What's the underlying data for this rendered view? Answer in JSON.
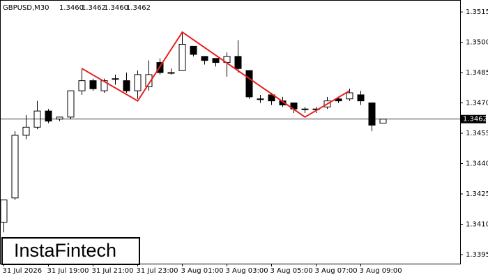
{
  "chart_data": {
    "type": "candlestick",
    "symbol": "GBPUSD,M30",
    "header_values": [
      1.346,
      1.3462,
      1.346,
      1.3462
    ],
    "header_labels": [
      "1.3460",
      "1.3462",
      "1.3460",
      "1.3462"
    ],
    "brand": "InstaFintech",
    "categories": [
      "31 Jul 2026",
      null,
      null,
      null,
      "31 Jul 19:00",
      null,
      null,
      null,
      "31 Jul 21:00",
      null,
      null,
      null,
      "31 Jul 23:00",
      null,
      null,
      null,
      "3 Aug 01:00",
      null,
      null,
      null,
      "3 Aug 03:00",
      null,
      null,
      null,
      "3 Aug 05:00",
      null,
      null,
      null,
      "3 Aug 07:00",
      null,
      null,
      null,
      "3 Aug 09:00",
      null,
      null
    ],
    "open": [
      1.3411,
      1.3423,
      1.3454,
      1.3458,
      1.3466,
      1.3462,
      1.3463,
      1.3476,
      1.3481,
      1.3476,
      1.3482,
      1.3481,
      1.3476,
      1.3478,
      1.349,
      1.3485,
      1.3486,
      1.3498,
      1.3493,
      1.3492,
      1.349,
      1.3493,
      1.3486,
      1.3472,
      1.3474,
      1.3471,
      1.347,
      1.3467,
      1.3467,
      1.3468,
      1.3472,
      1.3472,
      1.3474,
      1.347,
      1.346
    ],
    "high": [
      1.3422,
      1.3456,
      1.3464,
      1.3471,
      1.3467,
      1.3463,
      1.3476,
      1.3487,
      1.3482,
      1.3482,
      1.3484,
      1.3485,
      1.3486,
      1.3491,
      1.3492,
      1.3487,
      1.3505,
      1.3498,
      1.3493,
      1.3492,
      1.3495,
      1.3501,
      1.3486,
      1.3474,
      1.3475,
      1.3473,
      1.347,
      1.3468,
      1.3468,
      1.3473,
      1.3473,
      1.3477,
      1.3476,
      1.347,
      1.3462
    ],
    "low": [
      1.3406,
      1.3422,
      1.3452,
      1.3457,
      1.346,
      1.3461,
      1.3462,
      1.3474,
      1.3476,
      1.3475,
      1.3479,
      1.3475,
      1.3472,
      1.3476,
      1.3484,
      1.3484,
      1.3486,
      1.3493,
      1.3489,
      1.3488,
      1.3483,
      1.3485,
      1.3472,
      1.347,
      1.3469,
      1.3468,
      1.3465,
      1.3465,
      1.3465,
      1.3467,
      1.347,
      1.3471,
      1.3469,
      1.3456,
      1.346
    ],
    "close": [
      1.3422,
      1.3454,
      1.3458,
      1.3466,
      1.3461,
      1.3463,
      1.3476,
      1.3481,
      1.3477,
      1.3481,
      1.3482,
      1.3476,
      1.3484,
      1.3484,
      1.3485,
      1.3485,
      1.3499,
      1.3494,
      1.3491,
      1.349,
      1.3493,
      1.3487,
      1.3473,
      1.3472,
      1.3471,
      1.3469,
      1.3467,
      1.3467,
      1.3467,
      1.3471,
      1.3471,
      1.3475,
      1.3471,
      1.3459,
      1.3462
    ],
    "pattern": {
      "color": "#e8201e",
      "x": [
        7,
        12,
        16,
        27,
        31
      ],
      "y": [
        1.3487,
        1.3471,
        1.3505,
        1.3463,
        1.3476
      ]
    },
    "last_price": 1.3462,
    "ylim": [
      1.33905,
      1.35209
    ],
    "yticks": [
      {
        "value": 1.3395,
        "label": "1.3395"
      },
      {
        "value": 1.341,
        "label": "1.3410"
      },
      {
        "value": 1.3425,
        "label": "1.3425"
      },
      {
        "value": 1.344,
        "label": "1.3440"
      },
      {
        "value": 1.3455,
        "label": "1.3455"
      },
      {
        "value": 1.347,
        "label": "1.3470"
      },
      {
        "value": 1.3485,
        "label": "1.3485"
      },
      {
        "value": 1.35,
        "label": "1.3500"
      },
      {
        "value": 1.3515,
        "label": "1.3515"
      }
    ]
  }
}
